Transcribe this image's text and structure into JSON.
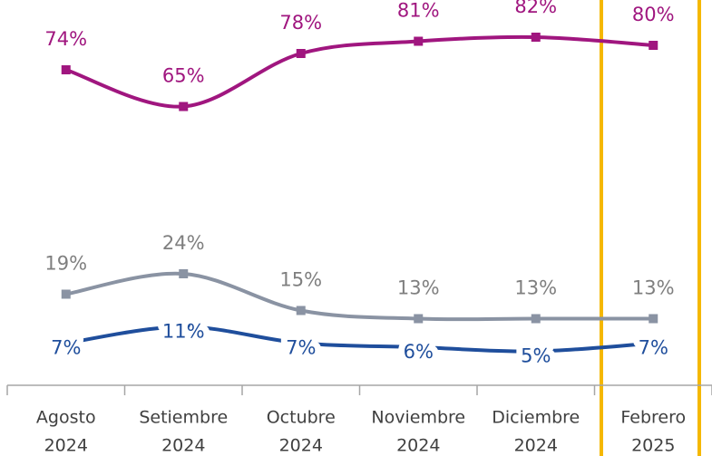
{
  "chart_data": {
    "type": "line",
    "categories": [
      [
        "Agosto",
        "2024"
      ],
      [
        "Setiembre",
        "2024"
      ],
      [
        "Octubre",
        "2024"
      ],
      [
        "Noviembre",
        "2024"
      ],
      [
        "Diciembre",
        "2024"
      ],
      [
        "Febrero",
        "2025"
      ]
    ],
    "series": [
      {
        "color": "#a0167f",
        "label_color": "#a0167f",
        "label_pos": "above",
        "values": [
          74,
          65,
          78,
          81,
          82,
          80
        ],
        "value_labels": [
          "74%",
          "65%",
          "78%",
          "81%",
          "82%",
          "80%"
        ]
      },
      {
        "color": "#8a93a3",
        "label_color": "#7f7f7f",
        "label_pos": "above",
        "values": [
          19,
          24,
          15,
          13,
          13,
          13
        ],
        "value_labels": [
          "19%",
          "24%",
          "15%",
          "13%",
          "13%",
          "13%"
        ]
      },
      {
        "color": "#1f4e9c",
        "label_color": "#1f4e9c",
        "label_pos": "on",
        "values": [
          7,
          11,
          7,
          6,
          5,
          7
        ],
        "value_labels": [
          "7%",
          "11%",
          "7%",
          "6%",
          "5%",
          "7%"
        ]
      }
    ],
    "ylim": [
      0,
      90
    ]
  }
}
